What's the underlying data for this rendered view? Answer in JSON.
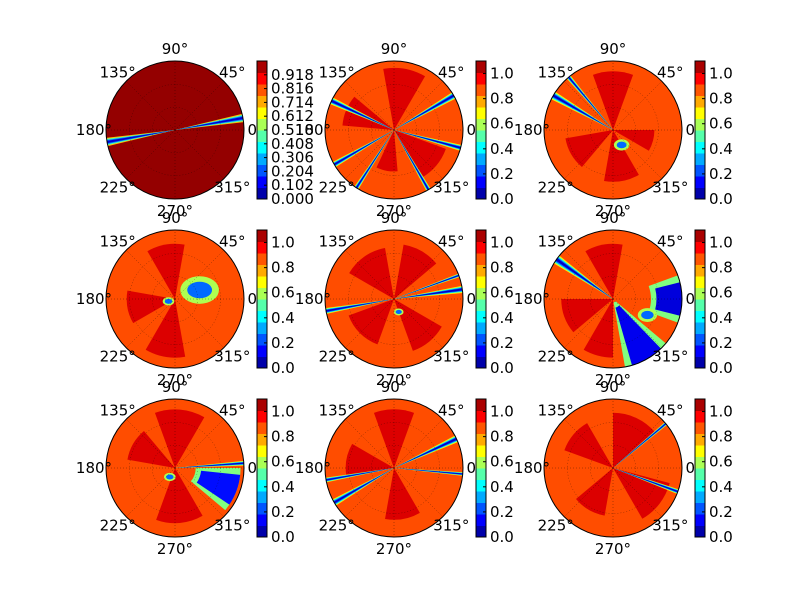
{
  "colormap": {
    "name": "jet",
    "stops": [
      "#000080",
      "#0000ff",
      "#0080ff",
      "#00ffff",
      "#80ff80",
      "#ffff00",
      "#ff8000",
      "#ff0000",
      "#800000"
    ]
  },
  "angle_labels": [
    {
      "text": "90°",
      "angle": 90
    },
    {
      "text": "45°",
      "angle": 45
    },
    {
      "text": "135°",
      "angle": 135
    },
    {
      "text": "180°",
      "angle": 180
    },
    {
      "text": "0°",
      "angle": 0
    },
    {
      "text": "225°",
      "angle": 225
    },
    {
      "text": "315°",
      "angle": 315
    },
    {
      "text": "270°",
      "angle": 270
    }
  ],
  "chart_data": [
    {
      "type": "polar-contour",
      "panel": "row1-col1",
      "vmin": 0.0,
      "vmax": 1.02,
      "background_value": 1.0,
      "colorbar_ticks": [
        "0.918",
        "0.816",
        "0.714",
        "0.612",
        "0.510",
        "0.408",
        "0.306",
        "0.204",
        "0.102",
        "0.000"
      ],
      "colorbar_tick_values": [
        0.918,
        0.816,
        0.714,
        0.612,
        0.51,
        0.408,
        0.306,
        0.204,
        0.102,
        0.0
      ],
      "patches": [],
      "beams": [
        {
          "angle": 190,
          "width": 7
        },
        {
          "angle": 10,
          "width": 7
        }
      ]
    },
    {
      "type": "polar-contour",
      "panel": "row1-col2",
      "vmin": 0.0,
      "vmax": 1.1,
      "background_value": 0.88,
      "colorbar_ticks": [
        "1.0",
        "0.8",
        "0.6",
        "0.4",
        "0.2",
        "0.0"
      ],
      "colorbar_tick_values": [
        1.0,
        0.8,
        0.6,
        0.4,
        0.2,
        0.0
      ],
      "patches": [
        {
          "a1": 60,
          "a2": 100,
          "r": 0.9,
          "value": 1.0
        },
        {
          "a1": 140,
          "a2": 175,
          "r": 0.75,
          "value": 1.0
        },
        {
          "a1": 245,
          "a2": 275,
          "r": 0.6,
          "value": 1.0
        },
        {
          "a1": 300,
          "a2": 340,
          "r": 0.8,
          "value": 1.0
        }
      ],
      "beams": [
        {
          "angle": 30,
          "width": 6
        },
        {
          "angle": 155,
          "width": 6
        },
        {
          "angle": 210,
          "width": 5
        },
        {
          "angle": 237,
          "width": 4
        },
        {
          "angle": 300,
          "width": 4
        },
        {
          "angle": 345,
          "width": 5
        }
      ]
    },
    {
      "type": "polar-contour",
      "panel": "row1-col3",
      "vmin": 0.0,
      "vmax": 1.1,
      "background_value": 0.88,
      "colorbar_ticks": [
        "1.0",
        "0.8",
        "0.6",
        "0.4",
        "0.2",
        "0.0"
      ],
      "colorbar_tick_values": [
        1.0,
        0.8,
        0.6,
        0.4,
        0.2,
        0.0
      ],
      "patches": [
        {
          "a1": 70,
          "a2": 110,
          "r": 0.85,
          "value": 1.0
        },
        {
          "a1": 190,
          "a2": 230,
          "r": 0.7,
          "value": 1.0
        },
        {
          "a1": 260,
          "a2": 300,
          "r": 0.75,
          "value": 1.0
        },
        {
          "a1": 330,
          "a2": 360,
          "r": 0.6,
          "value": 1.0
        }
      ],
      "beams": [
        {
          "angle": 150,
          "width": 7
        },
        {
          "angle": 130,
          "width": 4
        }
      ],
      "blobs": [
        {
          "angle": 300,
          "r": 0.25,
          "size": 0.08
        }
      ]
    },
    {
      "type": "polar-contour",
      "panel": "row2-col1",
      "vmin": 0.0,
      "vmax": 1.1,
      "background_value": 0.88,
      "colorbar_ticks": [
        "1.0",
        "0.8",
        "0.6",
        "0.4",
        "0.2",
        "0.0"
      ],
      "colorbar_tick_values": [
        1.0,
        0.8,
        0.6,
        0.4,
        0.2,
        0.0
      ],
      "patches": [
        {
          "a1": 80,
          "a2": 120,
          "r": 0.8,
          "value": 1.0
        },
        {
          "a1": 170,
          "a2": 210,
          "r": 0.7,
          "value": 1.0
        },
        {
          "a1": 240,
          "a2": 280,
          "r": 0.85,
          "value": 1.0
        }
      ],
      "beams": [],
      "blobs": [
        {
          "angle": 20,
          "r": 0.38,
          "size": 0.2
        },
        {
          "angle": 200,
          "r": 0.1,
          "size": 0.06
        }
      ]
    },
    {
      "type": "polar-contour",
      "panel": "row2-col2",
      "vmin": 0.0,
      "vmax": 1.1,
      "background_value": 0.88,
      "colorbar_ticks": [
        "1.0",
        "0.8",
        "0.6",
        "0.4",
        "0.2",
        "0.0"
      ],
      "colorbar_tick_values": [
        1.0,
        0.8,
        0.6,
        0.4,
        0.2,
        0.0
      ],
      "patches": [
        {
          "a1": 40,
          "a2": 80,
          "r": 0.8,
          "value": 1.0
        },
        {
          "a1": 100,
          "a2": 150,
          "r": 0.75,
          "value": 1.0
        },
        {
          "a1": 200,
          "a2": 250,
          "r": 0.7,
          "value": 1.0
        },
        {
          "a1": 290,
          "a2": 330,
          "r": 0.8,
          "value": 1.0
        }
      ],
      "beams": [
        {
          "angle": 8,
          "width": 6
        },
        {
          "angle": 190,
          "width": 5
        },
        {
          "angle": 20,
          "width": 3
        }
      ],
      "blobs": [
        {
          "angle": 290,
          "r": 0.2,
          "size": 0.05
        }
      ]
    },
    {
      "type": "polar-contour",
      "panel": "row2-col3",
      "vmin": 0.0,
      "vmax": 1.1,
      "background_value": 0.88,
      "colorbar_ticks": [
        "1.0",
        "0.8",
        "0.6",
        "0.4",
        "0.2",
        "0.0"
      ],
      "colorbar_tick_values": [
        1.0,
        0.8,
        0.6,
        0.4,
        0.2,
        0.0
      ],
      "patches": [
        {
          "a1": 80,
          "a2": 120,
          "r": 0.8,
          "value": 1.0
        },
        {
          "a1": 180,
          "a2": 220,
          "r": 0.75,
          "value": 1.0
        },
        {
          "a1": 240,
          "a2": 270,
          "r": 0.85,
          "value": 1.0
        }
      ],
      "beams": [
        {
          "angle": 145,
          "width": 8
        }
      ],
      "wedges": [
        {
          "a1": 280,
          "a2": 320,
          "r0": 0.05,
          "r1": 1.0,
          "value": 0.12
        },
        {
          "a1": 340,
          "a2": 380,
          "r0": 0.55,
          "r1": 1.0,
          "value": 0.1
        }
      ],
      "blobs": [
        {
          "angle": 335,
          "r": 0.55,
          "size": 0.1
        }
      ]
    },
    {
      "type": "polar-contour",
      "panel": "row3-col1",
      "vmin": 0.0,
      "vmax": 1.1,
      "background_value": 0.88,
      "colorbar_ticks": [
        "1.0",
        "0.8",
        "0.6",
        "0.4",
        "0.2",
        "0.0"
      ],
      "colorbar_tick_values": [
        1.0,
        0.8,
        0.6,
        0.4,
        0.2,
        0.0
      ],
      "patches": [
        {
          "a1": 60,
          "a2": 110,
          "r": 0.85,
          "value": 1.0
        },
        {
          "a1": 130,
          "a2": 170,
          "r": 0.7,
          "value": 1.0
        },
        {
          "a1": 250,
          "a2": 300,
          "r": 0.8,
          "value": 1.0
        }
      ],
      "beams": [
        {
          "angle": 4,
          "width": 4
        }
      ],
      "wedges": [
        {
          "a1": 320,
          "a2": 360,
          "r0": 0.3,
          "r1": 0.95,
          "value": 0.15
        }
      ],
      "blobs": [
        {
          "angle": 240,
          "r": 0.15,
          "size": 0.06
        }
      ]
    },
    {
      "type": "polar-contour",
      "panel": "row3-col2",
      "vmin": 0.0,
      "vmax": 1.1,
      "background_value": 0.88,
      "colorbar_ticks": [
        "1.0",
        "0.8",
        "0.6",
        "0.4",
        "0.2",
        "0.0"
      ],
      "colorbar_tick_values": [
        1.0,
        0.8,
        0.6,
        0.4,
        0.2,
        0.0
      ],
      "patches": [
        {
          "a1": 70,
          "a2": 110,
          "r": 0.85,
          "value": 1.0
        },
        {
          "a1": 150,
          "a2": 190,
          "r": 0.7,
          "value": 1.0
        },
        {
          "a1": 260,
          "a2": 300,
          "r": 0.75,
          "value": 1.0
        }
      ],
      "beams": [
        {
          "angle": 25,
          "width": 6
        },
        {
          "angle": 210,
          "width": 6
        },
        {
          "angle": 190,
          "width": 4
        },
        {
          "angle": 355,
          "width": 3
        }
      ]
    },
    {
      "type": "polar-contour",
      "panel": "row3-col3",
      "vmin": 0.0,
      "vmax": 1.1,
      "background_value": 0.88,
      "colorbar_ticks": [
        "1.0",
        "0.8",
        "0.6",
        "0.4",
        "0.2",
        "0.0"
      ],
      "colorbar_tick_values": [
        1.0,
        0.8,
        0.6,
        0.4,
        0.2,
        0.0
      ],
      "patches": [
        {
          "a1": 40,
          "a2": 90,
          "r": 0.8,
          "value": 1.0
        },
        {
          "a1": 120,
          "a2": 160,
          "r": 0.75,
          "value": 1.0
        },
        {
          "a1": 220,
          "a2": 260,
          "r": 0.7,
          "value": 1.0
        },
        {
          "a1": 300,
          "a2": 345,
          "r": 0.85,
          "value": 1.0
        }
      ],
      "beams": [
        {
          "angle": 40,
          "width": 3
        },
        {
          "angle": 340,
          "width": 4
        }
      ]
    }
  ]
}
